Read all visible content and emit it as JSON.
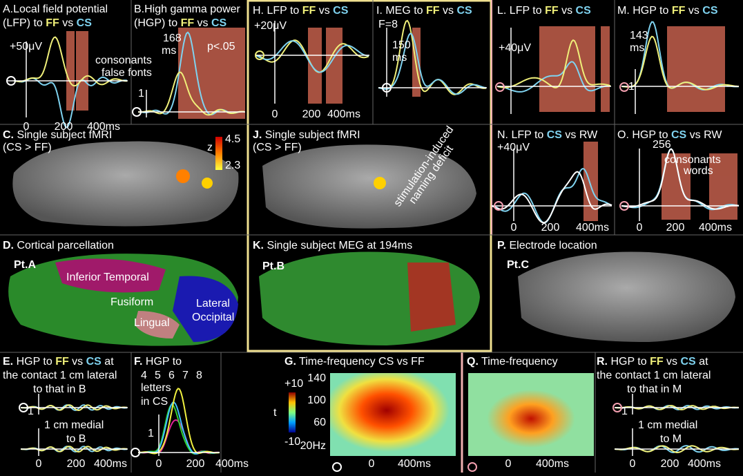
{
  "panels": {
    "A": {
      "letter": "A.",
      "line1": "Local field potential",
      "line2": [
        "(LFP) to ",
        "FF",
        " vs ",
        "CS"
      ],
      "scale": "+50μV",
      "legend": [
        "consonants",
        "false fonts"
      ],
      "ticks": [
        "0",
        "200",
        "400ms"
      ]
    },
    "B": {
      "letter": "B.",
      "line1": "High gamma power",
      "line2": [
        "(HGP) to ",
        "FF",
        " vs ",
        "CS"
      ],
      "latency": "168",
      "unit": "ms",
      "scale": "1",
      "p": "p<.05"
    },
    "H": {
      "letter": "H.",
      "title": [
        " LFP to ",
        "FF",
        " vs ",
        "CS"
      ],
      "scale": "+20μV",
      "ticks": [
        "0",
        "200",
        "400ms"
      ]
    },
    "I": {
      "letter": "I.",
      "title": [
        " MEG to ",
        "FF",
        " vs ",
        "CS"
      ],
      "f": "F=8",
      "latency": "150",
      "unit": "ms"
    },
    "L": {
      "letter": "L.",
      "title": [
        " LFP to ",
        "FF",
        " vs ",
        "CS"
      ],
      "scale": "+40μV"
    },
    "M": {
      "letter": "M.",
      "title": [
        " HGP  to ",
        "FF",
        " vs ",
        "CS"
      ],
      "latency": "143",
      "unit": "ms",
      "scale": "1"
    },
    "C": {
      "letter": "C.",
      "title": " Single subject fMRI",
      "sub": "(CS > FF)",
      "z": "z",
      "cmax": "4.5",
      "cmin": "2.3"
    },
    "J": {
      "letter": "J.",
      "title": " Single subject fMRI",
      "sub": "(CS > FF)",
      "annotation": [
        "stimulation-induced",
        "naming deficit"
      ]
    },
    "N": {
      "letter": "N.",
      "title": [
        " LFP to ",
        "CS",
        " vs ",
        "RW"
      ],
      "scale": "+40μV",
      "ticks": [
        "0",
        "200",
        "400ms"
      ]
    },
    "O": {
      "letter": "O.",
      "title": [
        " HGP to ",
        "CS",
        " vs ",
        "RW"
      ],
      "latency": "256",
      "legend": [
        "consonants",
        "words"
      ],
      "ticks": [
        "0",
        "200",
        "400ms"
      ]
    },
    "D": {
      "letter": "D.",
      "title": " Cortical parcellation",
      "patient": "Pt.A",
      "regions": [
        "Inferior Temporal",
        "Fusiform",
        "Lingual",
        "Lateral",
        "Occipital"
      ]
    },
    "K": {
      "letter": "K.",
      "title": " Single subject MEG at 194ms",
      "patient": "Pt.B"
    },
    "P": {
      "letter": "P.",
      "title": " Electrode location",
      "patient": "Pt.C"
    },
    "E": {
      "letter": "E.",
      "line1": [
        " HGP to ",
        "FF",
        " vs ",
        "CS",
        " at"
      ],
      "line2": "the contact 1 cm lateral",
      "line3": "to that in B",
      "scale": "1",
      "medial": [
        "1 cm medial",
        "to B"
      ],
      "ticks": [
        "0",
        "200",
        "400ms"
      ]
    },
    "F": {
      "letter": "F.",
      "line1": " HGP to",
      "counts": [
        "4",
        "5",
        "6",
        "7",
        "8"
      ],
      "line3": "letters",
      "line4": "in CS",
      "scale": "1",
      "ticks": [
        "0",
        "200",
        "400ms"
      ]
    },
    "G": {
      "letter": "G.",
      "title": " Time-frequency CS vs FF",
      "cmax": "+10",
      "t": "t",
      "cmin": "-10",
      "yticks": [
        "140",
        "100",
        "60",
        "20Hz"
      ],
      "xticks": [
        "0",
        "400ms"
      ]
    },
    "Q": {
      "letter": "Q.",
      "title": " Time-frequency",
      "xticks": [
        "0",
        "400ms"
      ]
    },
    "R": {
      "letter": "R.",
      "line1": [
        " HGP to ",
        "FF",
        " vs ",
        "CS",
        " at"
      ],
      "line2": "the contact 1 cm lateral",
      "line3": "to that in M",
      "scale": "1",
      "medial": [
        "1 cm medial",
        "to M"
      ],
      "ticks": [
        "0",
        "200",
        "400ms"
      ]
    }
  }
}
